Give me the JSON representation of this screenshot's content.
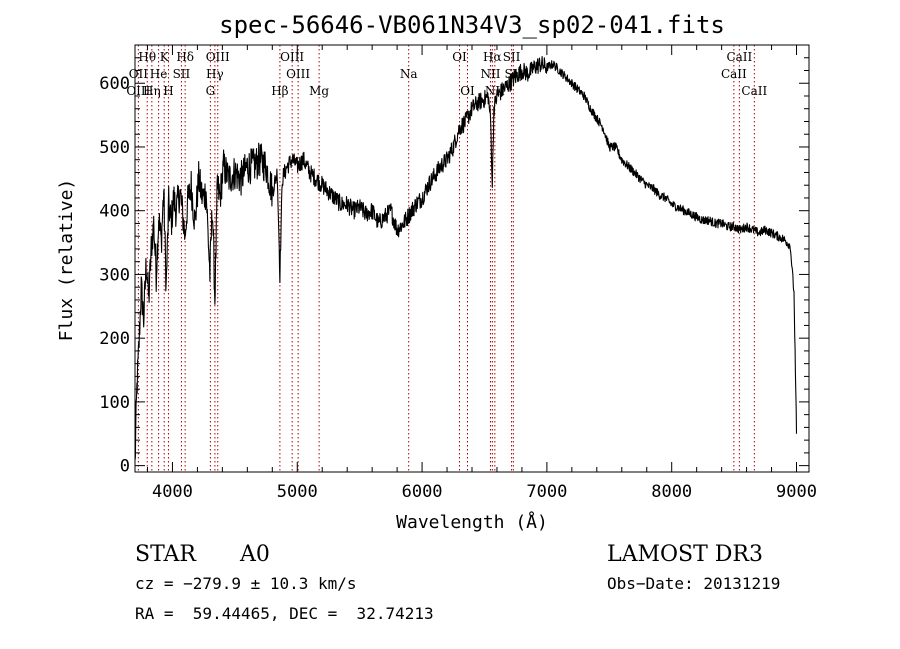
{
  "chart_data": {
    "type": "line",
    "title": "spec-56646-VB061N34V3_sp02-041.fits",
    "xlabel": "Wavelength (Å)",
    "ylabel": "Flux (relative)",
    "xlim": [
      3700,
      9100
    ],
    "ylim": [
      -10,
      660
    ],
    "x_ticks": [
      4000,
      5000,
      6000,
      7000,
      8000,
      9000
    ],
    "y_ticks": [
      0,
      100,
      200,
      300,
      400,
      500,
      600
    ],
    "series": [
      {
        "name": "flux",
        "x": [
          3700,
          3715,
          3730,
          3750,
          3770,
          3790,
          3810,
          3830,
          3850,
          3870,
          3890,
          3910,
          3930,
          3950,
          3970,
          3990,
          4010,
          4030,
          4060,
          4090,
          4101,
          4120,
          4150,
          4180,
          4210,
          4240,
          4270,
          4300,
          4320,
          4340,
          4360,
          4380,
          4410,
          4450,
          4500,
          4550,
          4600,
          4650,
          4700,
          4750,
          4800,
          4840,
          4861,
          4880,
          4920,
          4960,
          5000,
          5050,
          5100,
          5150,
          5200,
          5250,
          5300,
          5350,
          5400,
          5450,
          5500,
          5550,
          5600,
          5650,
          5700,
          5750,
          5800,
          5850,
          5900,
          5950,
          6000,
          6050,
          6100,
          6150,
          6200,
          6250,
          6300,
          6350,
          6400,
          6450,
          6500,
          6530,
          6550,
          6563,
          6575,
          6600,
          6650,
          6700,
          6750,
          6800,
          6850,
          6900,
          6950,
          7000,
          7050,
          7100,
          7150,
          7200,
          7250,
          7300,
          7350,
          7400,
          7450,
          7500,
          7550,
          7600,
          7650,
          7700,
          7750,
          7800,
          7850,
          7900,
          7950,
          8000,
          8050,
          8100,
          8150,
          8200,
          8250,
          8300,
          8350,
          8400,
          8450,
          8500,
          8550,
          8600,
          8650,
          8700,
          8750,
          8800,
          8850,
          8900,
          8950,
          8980,
          9000
        ],
        "y": [
          0,
          120,
          180,
          280,
          230,
          320,
          260,
          340,
          380,
          300,
          390,
          350,
          430,
          280,
          410,
          380,
          420,
          400,
          430,
          380,
          360,
          410,
          440,
          380,
          450,
          420,
          430,
          300,
          410,
          260,
          440,
          420,
          470,
          450,
          460,
          450,
          470,
          470,
          480,
          470,
          430,
          460,
          300,
          450,
          470,
          480,
          470,
          480,
          460,
          450,
          440,
          430,
          420,
          410,
          410,
          400,
          405,
          395,
          400,
          380,
          390,
          400,
          370,
          380,
          395,
          410,
          420,
          440,
          455,
          470,
          480,
          500,
          530,
          540,
          560,
          570,
          575,
          580,
          540,
          440,
          560,
          580,
          590,
          600,
          610,
          620,
          615,
          625,
          630,
          625,
          630,
          620,
          610,
          600,
          590,
          580,
          560,
          545,
          530,
          500,
          500,
          480,
          470,
          460,
          450,
          440,
          435,
          425,
          420,
          410,
          405,
          400,
          395,
          390,
          385,
          385,
          380,
          380,
          375,
          375,
          370,
          375,
          370,
          365,
          370,
          365,
          360,
          355,
          345,
          270,
          50
        ]
      }
    ],
    "line_markers": [
      {
        "label": "Hθ",
        "wavelength": 3798,
        "row": 1
      },
      {
        "label": "K",
        "wavelength": 3934,
        "row": 1
      },
      {
        "label": "Hδ",
        "wavelength": 4102,
        "row": 1
      },
      {
        "label": "OIII",
        "wavelength": 4363,
        "row": 1
      },
      {
        "label": "OIII",
        "wavelength": 4959,
        "row": 1
      },
      {
        "label": "OI",
        "wavelength": 6300,
        "row": 1
      },
      {
        "label": "Hα",
        "wavelength": 6563,
        "row": 1
      },
      {
        "label": "SII",
        "wavelength": 6717,
        "row": 1
      },
      {
        "label": "CaII",
        "wavelength": 8542,
        "row": 1
      },
      {
        "label": "OII",
        "wavelength": 3727,
        "row": 2
      },
      {
        "label": "He",
        "wavelength": 3889,
        "row": 2
      },
      {
        "label": "SII",
        "wavelength": 4072,
        "row": 2
      },
      {
        "label": "Hγ",
        "wavelength": 4340,
        "row": 2
      },
      {
        "label": "OIII",
        "wavelength": 5007,
        "row": 2
      },
      {
        "label": "Na",
        "wavelength": 5893,
        "row": 2
      },
      {
        "label": "NII",
        "wavelength": 6548,
        "row": 2
      },
      {
        "label": "SII",
        "wavelength": 6731,
        "row": 2
      },
      {
        "label": "CaII",
        "wavelength": 8498,
        "row": 2
      },
      {
        "label": "OIII",
        "wavelength": 3727,
        "row": 3
      },
      {
        "label": "Hη",
        "wavelength": 3835,
        "row": 3
      },
      {
        "label": "H",
        "wavelength": 3968,
        "row": 3
      },
      {
        "label": "G",
        "wavelength": 4304,
        "row": 3
      },
      {
        "label": "Hβ",
        "wavelength": 4861,
        "row": 3
      },
      {
        "label": "Mg",
        "wavelength": 5175,
        "row": 3
      },
      {
        "label": "OI",
        "wavelength": 6364,
        "row": 3
      },
      {
        "label": "NII",
        "wavelength": 6583,
        "row": 3
      },
      {
        "label": "CaII",
        "wavelength": 8662,
        "row": 3
      }
    ]
  },
  "info": {
    "class": "STAR",
    "subclass": "A0",
    "survey": "LAMOST DR3",
    "cz": "cz = −279.9 ± 10.3 km/s",
    "obs_date": "Obs−Date: 20131219",
    "coords": "RA =  59.44465, DEC =  32.74213"
  }
}
